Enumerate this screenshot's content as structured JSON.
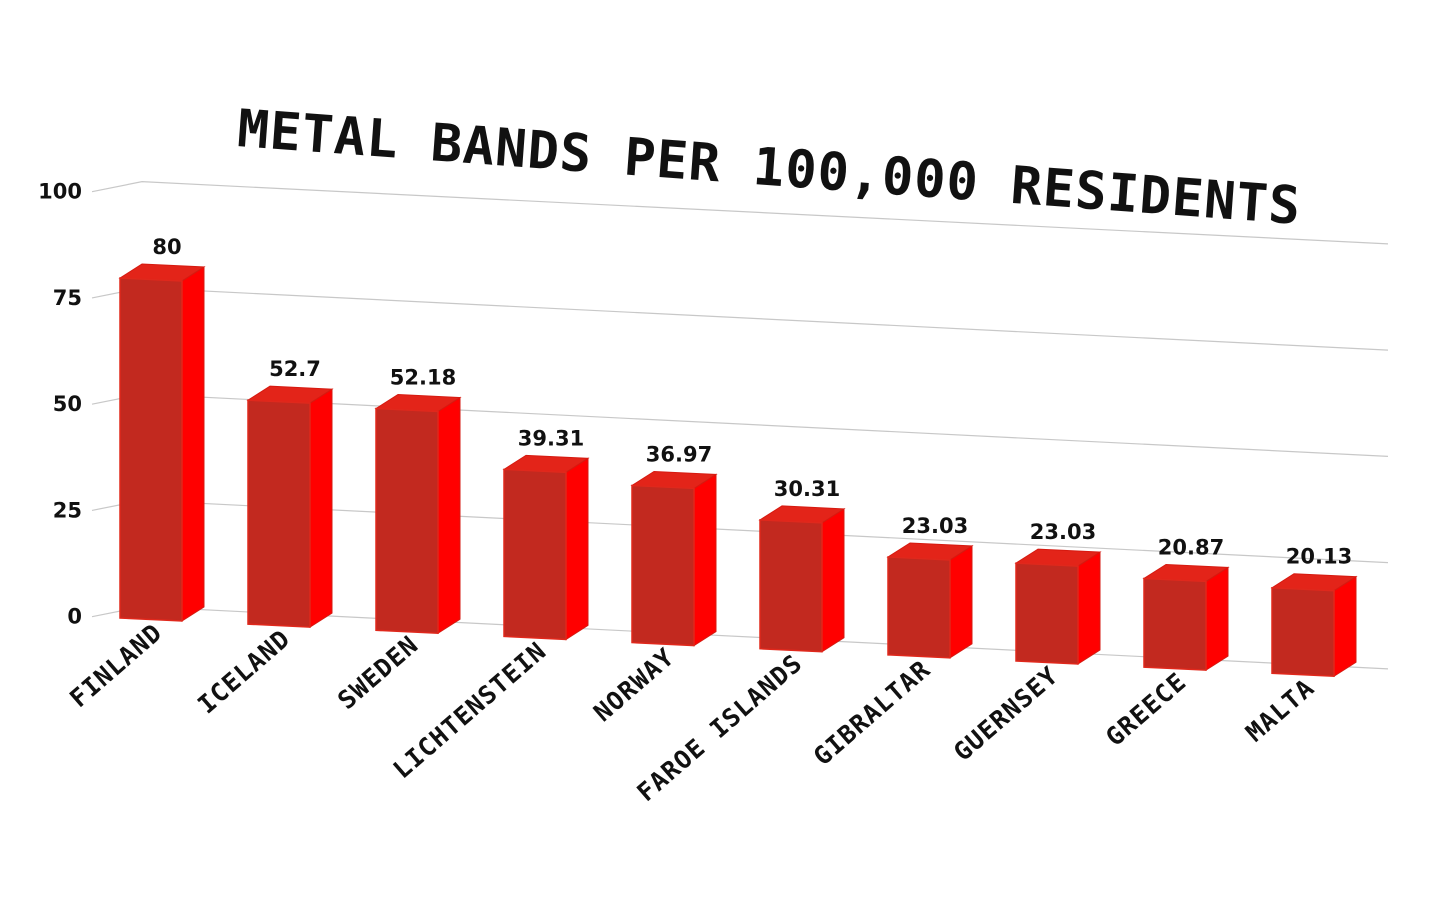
{
  "chart_data": {
    "type": "bar",
    "title": "METAL BANDS PER 100,000 RESIDENTS",
    "xlabel": "",
    "ylabel": "",
    "categories": [
      "FINLAND",
      "ICELAND",
      "SWEDEN",
      "LICHTENSTEIN",
      "NORWAY",
      "FAROE ISLANDS",
      "GIBRALTAR",
      "GUERNSEY",
      "GREECE",
      "MALTA"
    ],
    "values": [
      80,
      52.7,
      52.18,
      39.31,
      36.97,
      30.31,
      23.03,
      23.03,
      20.87,
      20.13
    ],
    "value_labels": [
      "80",
      "52.7",
      "52.18",
      "39.31",
      "36.97",
      "30.31",
      "23.03",
      "23.03",
      "20.87",
      "20.13"
    ],
    "y_ticks": [
      "0",
      "25",
      "50",
      "75",
      "100"
    ],
    "y_tick_values": [
      0,
      25,
      50,
      75,
      100
    ],
    "ylim": [
      0,
      100
    ],
    "grid": true,
    "legend": "none",
    "style": "3d",
    "colors": {
      "bar_front": "#c2291f",
      "bar_side": "#ff0000",
      "bar_top": "#e32419",
      "grid": "#c8c8c8"
    }
  }
}
